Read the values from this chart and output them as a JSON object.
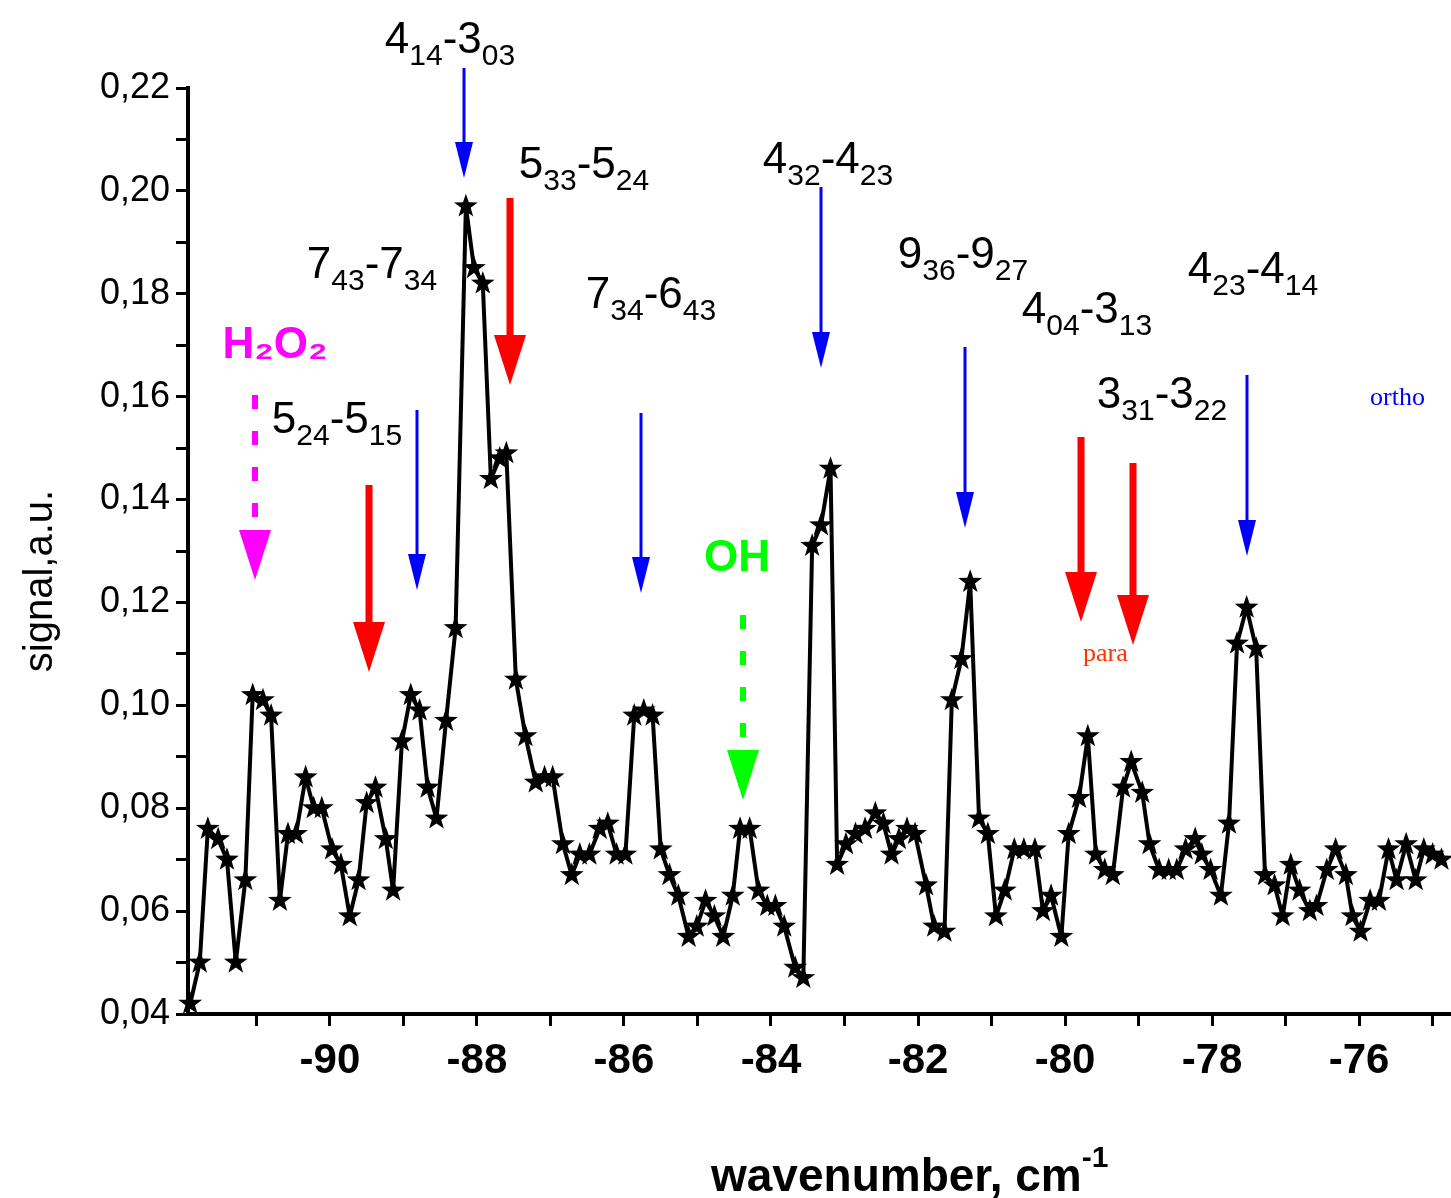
{
  "chart_data": {
    "type": "line",
    "xlabel": "wavenumber, cm$^{-1}$",
    "ylabel": "signal,a.u.",
    "xlim": [
      -91.93,
      -74.75
    ],
    "ylim": [
      0.04,
      0.22
    ],
    "xticks": [
      {
        "value": -91,
        "label": null
      },
      {
        "value": -90,
        "label": "-90"
      },
      {
        "value": -89,
        "label": null
      },
      {
        "value": -88,
        "label": "-88"
      },
      {
        "value": -87,
        "label": null
      },
      {
        "value": -86,
        "label": "-86"
      },
      {
        "value": -85,
        "label": null
      },
      {
        "value": -84,
        "label": "-84"
      },
      {
        "value": -83,
        "label": null
      },
      {
        "value": -82,
        "label": "-82"
      },
      {
        "value": -81,
        "label": null
      },
      {
        "value": -80,
        "label": "-80"
      },
      {
        "value": -79,
        "label": null
      },
      {
        "value": -78,
        "label": "-78"
      },
      {
        "value": -77,
        "label": null
      },
      {
        "value": -76,
        "label": "-76"
      },
      {
        "value": -75,
        "label": null
      }
    ],
    "yticks": [
      {
        "value": 0.04,
        "label": "0,04"
      },
      {
        "value": 0.05,
        "label": null
      },
      {
        "value": 0.06,
        "label": "0,06"
      },
      {
        "value": 0.07,
        "label": null
      },
      {
        "value": 0.08,
        "label": "0,08"
      },
      {
        "value": 0.09,
        "label": null
      },
      {
        "value": 0.1,
        "label": "0,10"
      },
      {
        "value": 0.11,
        "label": null
      },
      {
        "value": 0.12,
        "label": "0,12"
      },
      {
        "value": 0.13,
        "label": null
      },
      {
        "value": 0.14,
        "label": "0,14"
      },
      {
        "value": 0.15,
        "label": null
      },
      {
        "value": 0.16,
        "label": "0,16"
      },
      {
        "value": 0.17,
        "label": null
      },
      {
        "value": 0.18,
        "label": "0,18"
      },
      {
        "value": 0.19,
        "label": null
      },
      {
        "value": 0.2,
        "label": "0,20"
      },
      {
        "value": 0.21,
        "label": null
      },
      {
        "value": 0.22,
        "label": "0,22"
      }
    ],
    "grid": false,
    "legend": false,
    "marker": "star",
    "line_style": "solid",
    "x": [
      -91.9,
      -91.77,
      -91.66,
      -91.52,
      -91.4,
      -91.28,
      -91.15,
      -91.05,
      -90.91,
      -90.8,
      -90.68,
      -90.57,
      -90.46,
      -90.33,
      -90.22,
      -90.11,
      -89.97,
      -89.85,
      -89.73,
      -89.61,
      -89.5,
      -89.38,
      -89.24,
      -89.14,
      -89.02,
      -88.9,
      -88.78,
      -88.67,
      -88.55,
      -88.42,
      -88.29,
      -88.15,
      -88.04,
      -87.92,
      -87.81,
      -87.69,
      -87.6,
      -87.47,
      -87.34,
      -87.2,
      -87.08,
      -86.97,
      -86.83,
      -86.71,
      -86.6,
      -86.47,
      -86.33,
      -86.22,
      -86.1,
      -85.98,
      -85.86,
      -85.73,
      -85.61,
      -85.5,
      -85.38,
      -85.26,
      -85.12,
      -85.01,
      -84.89,
      -84.77,
      -84.65,
      -84.52,
      -84.42,
      -84.29,
      -84.17,
      -84.05,
      -83.94,
      -83.82,
      -83.67,
      -83.56,
      -83.44,
      -83.32,
      -83.19,
      -83.1,
      -82.98,
      -82.85,
      -82.72,
      -82.58,
      -82.47,
      -82.36,
      -82.26,
      -82.15,
      -82.04,
      -81.89,
      -81.78,
      -81.64,
      -81.54,
      -81.41,
      -81.29,
      -81.17,
      -81.05,
      -80.94,
      -80.82,
      -80.69,
      -80.56,
      -80.41,
      -80.3,
      -80.19,
      -80.05,
      -79.95,
      -79.81,
      -79.69,
      -79.58,
      -79.46,
      -79.35,
      -79.21,
      -79.1,
      -78.95,
      -78.85,
      -78.72,
      -78.59,
      -78.48,
      -78.36,
      -78.23,
      -78.14,
      -78.02,
      -77.88,
      -77.77,
      -77.66,
      -77.53,
      -77.4,
      -77.28,
      -77.15,
      -77.04,
      -76.93,
      -76.81,
      -76.67,
      -76.58,
      -76.44,
      -76.32,
      -76.18,
      -76.09,
      -75.98,
      -75.85,
      -75.73,
      -75.6,
      -75.49,
      -75.36,
      -75.23,
      -75.12,
      -75.0,
      -74.88
    ],
    "series": [
      {
        "color": "#000000",
        "values": [
          0.042,
          0.05,
          0.076,
          0.074,
          0.07,
          0.05,
          0.066,
          0.102,
          0.101,
          0.098,
          0.062,
          0.075,
          0.075,
          0.086,
          0.08,
          0.08,
          0.072,
          0.069,
          0.059,
          0.066,
          0.081,
          0.084,
          0.074,
          0.064,
          0.093,
          0.102,
          0.099,
          0.084,
          0.078,
          0.097,
          0.115,
          0.197,
          0.185,
          0.182,
          0.144,
          0.148,
          0.149,
          0.105,
          0.094,
          0.085,
          0.086,
          0.086,
          0.073,
          0.067,
          0.071,
          0.071,
          0.076,
          0.077,
          0.071,
          0.071,
          0.098,
          0.099,
          0.098,
          0.072,
          0.067,
          0.063,
          0.055,
          0.057,
          0.062,
          0.059,
          0.055,
          0.063,
          0.076,
          0.076,
          0.064,
          0.061,
          0.061,
          0.057,
          0.049,
          0.047,
          0.131,
          0.135,
          0.146,
          0.069,
          0.073,
          0.075,
          0.076,
          0.079,
          0.077,
          0.071,
          0.074,
          0.076,
          0.075,
          0.065,
          0.057,
          0.056,
          0.101,
          0.109,
          0.124,
          0.078,
          0.075,
          0.059,
          0.064,
          0.072,
          0.072,
          0.072,
          0.06,
          0.063,
          0.055,
          0.075,
          0.082,
          0.094,
          0.071,
          0.068,
          0.067,
          0.084,
          0.089,
          0.083,
          0.073,
          0.068,
          0.068,
          0.068,
          0.072,
          0.074,
          0.071,
          0.068,
          0.063,
          0.077,
          0.112,
          0.119,
          0.111,
          0.067,
          0.065,
          0.059,
          0.069,
          0.064,
          0.06,
          0.061,
          0.068,
          0.072,
          0.067,
          0.059,
          0.056,
          0.062,
          0.062,
          0.072,
          0.066,
          0.073,
          0.066,
          0.072,
          0.071,
          0.07
        ]
      }
    ],
    "annotations": [
      "4$_{14}$-3$_{03}$",
      "5$_{33}$-5$_{24}$",
      "7$_{43}$-7$_{34}$",
      "5$_{24}$-5$_{15}$",
      "7$_{34}$-6$_{43}$",
      "4$_{32}$-4$_{23}$",
      "9$_{36}$-9$_{27}$",
      "4$_{04}$-3$_{13}$",
      "3$_{31}$-3$_{22}$",
      "4$_{23}$-4$_{14}$",
      "H₂O₂",
      "OH",
      "para",
      "ortho"
    ]
  }
}
